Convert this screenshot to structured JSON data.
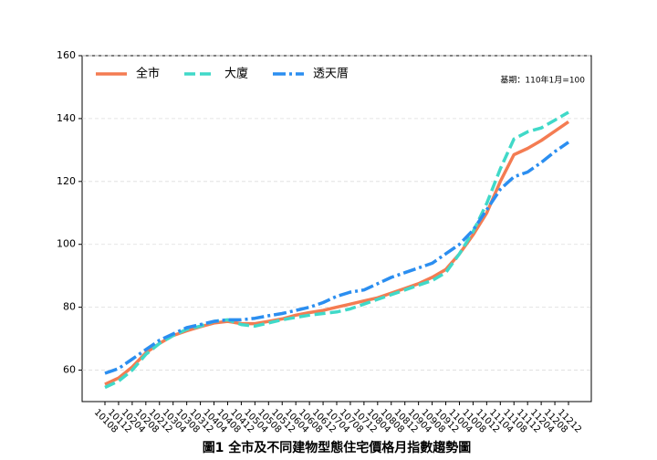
{
  "chart_data": {
    "type": "line",
    "title": "圖1  全市及不同建物型態住宅價格月指數趨勢圖",
    "annotation": "基期：110年1月=100",
    "categories": [
      "10108",
      "10112",
      "10204",
      "10208",
      "10212",
      "10304",
      "10308",
      "10312",
      "10404",
      "10408",
      "10412",
      "10504",
      "10508",
      "10512",
      "10604",
      "10608",
      "10612",
      "10704",
      "10708",
      "10712",
      "10804",
      "10808",
      "10812",
      "10904",
      "10908",
      "10912",
      "11004",
      "11008",
      "11012",
      "11104",
      "11108",
      "11112",
      "11204",
      "11208",
      "11212"
    ],
    "series": [
      {
        "name": "全市",
        "color": "#f47c52",
        "style": "solid",
        "values": [
          55.5,
          57.5,
          61,
          65.5,
          68.5,
          71,
          72.5,
          73.8,
          75,
          75.5,
          74.8,
          74.8,
          75.5,
          76.3,
          77.5,
          78.3,
          79,
          80,
          81,
          82,
          83,
          84.5,
          86,
          87.5,
          89.5,
          92,
          97,
          103,
          110,
          120,
          128.5,
          130.5,
          133,
          136,
          139
        ]
      },
      {
        "name": "大廈",
        "color": "#40d9c8",
        "style": "dashed",
        "values": [
          54.5,
          56.5,
          60,
          65,
          68.5,
          71,
          73,
          74,
          75.5,
          76,
          74.5,
          74,
          75,
          76,
          76.8,
          77.5,
          78,
          78.5,
          79.5,
          81,
          82.5,
          84,
          85.5,
          87,
          88.5,
          91,
          97,
          104,
          113,
          124,
          133.5,
          135.8,
          137,
          139.5,
          142
        ]
      },
      {
        "name": "透天厝",
        "color": "#2b8ef0",
        "style": "dashdot",
        "values": [
          59,
          60.5,
          63.5,
          66.5,
          69.5,
          71.5,
          73.5,
          74.5,
          75.5,
          76,
          76,
          76.5,
          77.3,
          78,
          79,
          80,
          81.5,
          83.5,
          84.8,
          85.5,
          87.5,
          89.5,
          91,
          92.5,
          94,
          97,
          100,
          104.5,
          111,
          117.5,
          121.5,
          123,
          126,
          129.5,
          132.5
        ]
      }
    ],
    "ylim": [
      50,
      160
    ],
    "yticks": [
      60,
      80,
      100,
      120,
      140,
      160
    ],
    "grid": true,
    "legend": "upper left"
  }
}
